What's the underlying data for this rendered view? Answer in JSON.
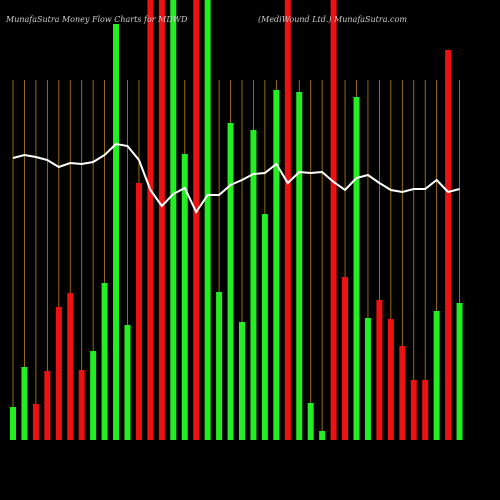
{
  "chart_data": {
    "type": "bar",
    "title": "MunafaSutra  Money Flow  Charts for MDWD",
    "subtitle": "(MediWound Ltd.) MunafaSutra.com",
    "categories": [
      null,
      null,
      null,
      null,
      null,
      null,
      null,
      null,
      null,
      null,
      null,
      null,
      null,
      null,
      null,
      null,
      null,
      null,
      null,
      null,
      null,
      null,
      null,
      null,
      null,
      null,
      null,
      null,
      null,
      null,
      null,
      null,
      null,
      null,
      null,
      null,
      null,
      null,
      null,
      null
    ],
    "series": [
      {
        "type": "bar",
        "values": [
          33,
          73,
          36,
          69,
          133,
          147,
          70,
          89,
          157,
          416,
          115,
          257,
          440,
          440,
          440,
          286,
          440,
          440,
          148,
          317,
          118,
          310,
          226,
          350,
          440,
          348,
          37,
          9,
          440,
          163,
          343,
          122,
          140,
          121,
          94,
          60,
          60,
          129,
          390,
          137
        ],
        "colors": [
          "#22ee22",
          "#22ee22",
          "#ee1111",
          "#ee1111",
          "#ee1111",
          "#ee1111",
          "#ee1111",
          "#22ee22",
          "#22ee22",
          "#22ee22",
          "#22ee22",
          "#ee1111",
          "#ee1111",
          "#ee1111",
          "#22ee22",
          "#22ee22",
          "#ee1111",
          "#22ee22",
          "#22ee22",
          "#22ee22",
          "#22ee22",
          "#22ee22",
          "#22ee22",
          "#22ee22",
          "#ee1111",
          "#22ee22",
          "#22ee22",
          "#22ee22",
          "#ee1111",
          "#ee1111",
          "#22ee22",
          "#22ee22",
          "#ee1111",
          "#ee1111",
          "#ee1111",
          "#ee1111",
          "#ee1111",
          "#22ee22",
          "#ee1111",
          "#22ee22"
        ]
      },
      {
        "type": "line",
        "color": "#ffffff",
        "values": [
          282,
          285,
          283,
          280,
          273,
          277,
          276,
          278,
          285,
          296,
          294,
          280,
          250,
          234,
          246,
          252,
          228,
          245,
          245,
          255,
          260,
          266,
          267,
          276,
          257,
          268,
          267,
          268,
          258,
          250,
          262,
          265,
          257,
          250,
          248,
          251,
          251,
          260,
          248,
          251
        ]
      }
    ],
    "ylim": [
      0,
      440
    ],
    "grid": true,
    "grid_color": "#b8860b"
  }
}
